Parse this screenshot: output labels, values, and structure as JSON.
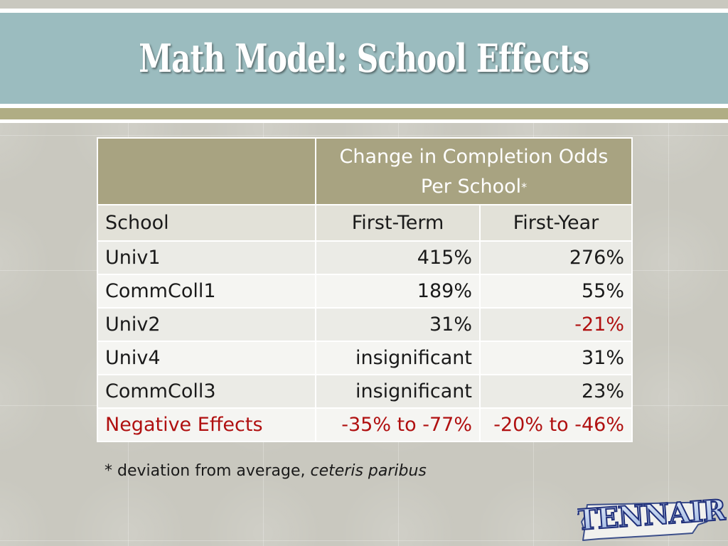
{
  "slide": {
    "title": "Math Model: School Effects"
  },
  "table": {
    "group_header": "Change in Completion Odds",
    "group_header_line2": "Per School",
    "group_header_mark": "*",
    "columns": [
      "School",
      "First-Term",
      "First-Year"
    ],
    "rows": [
      {
        "school": "Univ1",
        "first_term": "415%",
        "first_year": "276%"
      },
      {
        "school": "CommColl1",
        "first_term": "189%",
        "first_year": "55%"
      },
      {
        "school": "Univ2",
        "first_term": "31%",
        "first_year": "-21%"
      },
      {
        "school": "Univ4",
        "first_term": "insignificant",
        "first_year": "31%"
      },
      {
        "school": "CommColl3",
        "first_term": "insignificant",
        "first_year": "23%"
      },
      {
        "school": "Negative Effects",
        "first_term": "-35% to -77%",
        "first_year": "-20% to -46%"
      }
    ],
    "negative_color": "#b01010"
  },
  "footnote": {
    "prefix": "* deviation from average,",
    "italic": "ceteris paribus"
  },
  "logo": {
    "text": "TENNAIR",
    "icon": "tennessee-state-outline"
  },
  "colors": {
    "title_band": "#9bbcbf",
    "header_fill": "#a8a381",
    "accent_rule": "#b0ad84"
  }
}
